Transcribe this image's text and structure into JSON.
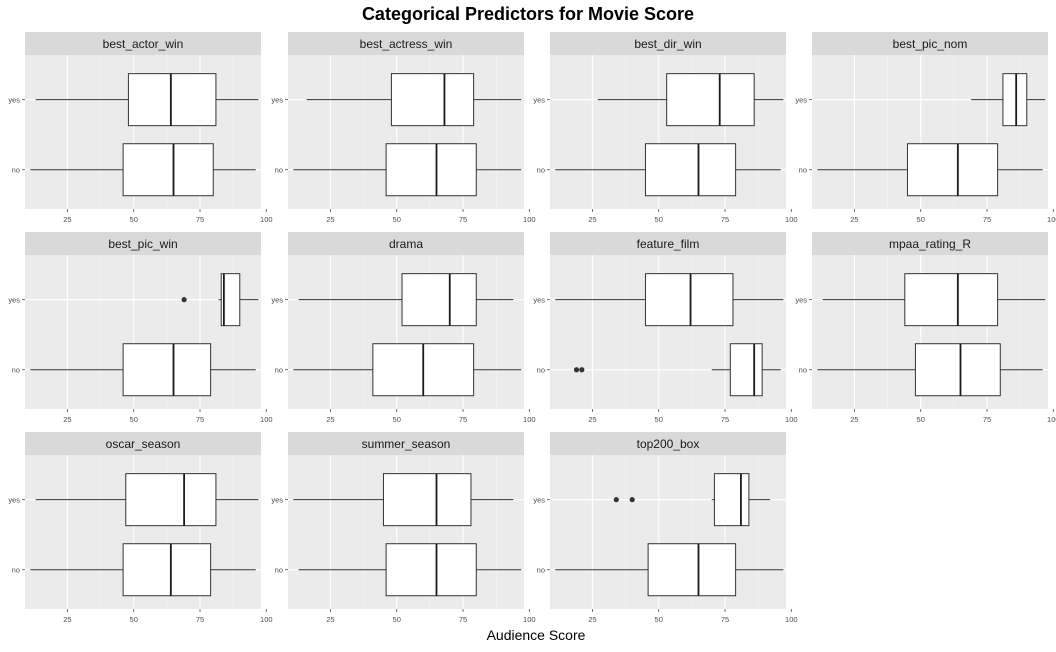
{
  "chart_data": {
    "type": "boxplot",
    "title": "Categorical Predictors for Movie Score",
    "xlabel": "Audience Score",
    "xlim": [
      9,
      98
    ],
    "xticks": [
      25,
      50,
      75,
      100
    ],
    "categories": [
      "yes",
      "no"
    ],
    "facets": [
      {
        "title": "best_actor_win",
        "boxes": [
          {
            "category": "yes",
            "min": 13,
            "q1": 48,
            "median": 64,
            "q3": 81,
            "max": 97,
            "outliers": []
          },
          {
            "category": "no",
            "min": 11,
            "q1": 46,
            "median": 65,
            "q3": 80,
            "max": 96,
            "outliers": []
          }
        ]
      },
      {
        "title": "best_actress_win",
        "boxes": [
          {
            "category": "yes",
            "min": 16,
            "q1": 48,
            "median": 68,
            "q3": 79,
            "max": 97,
            "outliers": []
          },
          {
            "category": "no",
            "min": 11,
            "q1": 46,
            "median": 65,
            "q3": 80,
            "max": 97,
            "outliers": []
          }
        ]
      },
      {
        "title": "best_dir_win",
        "boxes": [
          {
            "category": "yes",
            "min": 27,
            "q1": 53,
            "median": 73,
            "q3": 86,
            "max": 97,
            "outliers": []
          },
          {
            "category": "no",
            "min": 11,
            "q1": 45,
            "median": 65,
            "q3": 79,
            "max": 96,
            "outliers": []
          }
        ]
      },
      {
        "title": "best_pic_nom",
        "boxes": [
          {
            "category": "yes",
            "min": 69,
            "q1": 81,
            "median": 86,
            "q3": 90,
            "max": 97,
            "outliers": []
          },
          {
            "category": "no",
            "min": 11,
            "q1": 45,
            "median": 64,
            "q3": 79,
            "max": 96,
            "outliers": []
          }
        ]
      },
      {
        "title": "best_pic_win",
        "boxes": [
          {
            "category": "yes",
            "min": 82,
            "q1": 83,
            "median": 84,
            "q3": 90,
            "max": 97,
            "outliers": [
              69
            ]
          },
          {
            "category": "no",
            "min": 11,
            "q1": 46,
            "median": 65,
            "q3": 79,
            "max": 96,
            "outliers": []
          }
        ]
      },
      {
        "title": "drama",
        "boxes": [
          {
            "category": "yes",
            "min": 13,
            "q1": 52,
            "median": 70,
            "q3": 80,
            "max": 94,
            "outliers": []
          },
          {
            "category": "no",
            "min": 11,
            "q1": 41,
            "median": 60,
            "q3": 79,
            "max": 97,
            "outliers": []
          }
        ]
      },
      {
        "title": "feature_film",
        "boxes": [
          {
            "category": "yes",
            "min": 11,
            "q1": 45,
            "median": 62,
            "q3": 78,
            "max": 97,
            "outliers": []
          },
          {
            "category": "no",
            "min": 70,
            "q1": 77,
            "median": 86,
            "q3": 89,
            "max": 96,
            "outliers": [
              19,
              21
            ]
          }
        ]
      },
      {
        "title": "mpaa_rating_R",
        "boxes": [
          {
            "category": "yes",
            "min": 13,
            "q1": 44,
            "median": 64,
            "q3": 79,
            "max": 97,
            "outliers": []
          },
          {
            "category": "no",
            "min": 11,
            "q1": 48,
            "median": 65,
            "q3": 80,
            "max": 96,
            "outliers": []
          }
        ]
      },
      {
        "title": "oscar_season",
        "boxes": [
          {
            "category": "yes",
            "min": 13,
            "q1": 47,
            "median": 69,
            "q3": 81,
            "max": 97,
            "outliers": []
          },
          {
            "category": "no",
            "min": 11,
            "q1": 46,
            "median": 64,
            "q3": 79,
            "max": 96,
            "outliers": []
          }
        ]
      },
      {
        "title": "summer_season",
        "boxes": [
          {
            "category": "yes",
            "min": 11,
            "q1": 45,
            "median": 65,
            "q3": 78,
            "max": 94,
            "outliers": []
          },
          {
            "category": "no",
            "min": 13,
            "q1": 46,
            "median": 65,
            "q3": 80,
            "max": 97,
            "outliers": []
          }
        ]
      },
      {
        "title": "top200_box",
        "boxes": [
          {
            "category": "yes",
            "min": 70,
            "q1": 71,
            "median": 81,
            "q3": 84,
            "max": 92,
            "outliers": [
              34,
              40
            ]
          },
          {
            "category": "no",
            "min": 11,
            "q1": 46,
            "median": 65,
            "q3": 79,
            "max": 97,
            "outliers": []
          }
        ]
      }
    ]
  }
}
